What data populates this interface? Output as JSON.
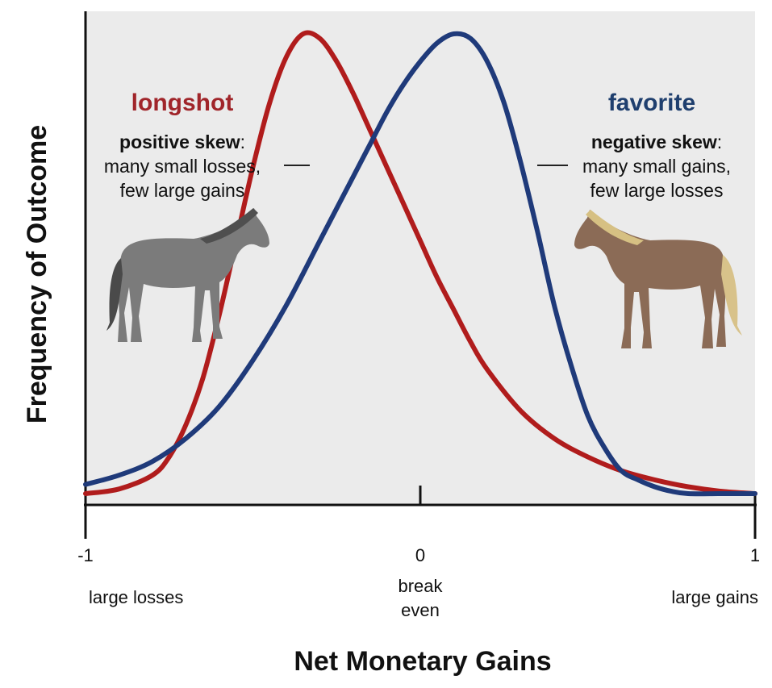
{
  "chart_data": {
    "type": "line",
    "title": "",
    "xlabel": "Net Monetary Gains",
    "ylabel": "Frequency of Outcome",
    "xlim": [
      -1,
      1
    ],
    "ylim": [
      0,
      1
    ],
    "grid": false,
    "x_ticks": [
      {
        "value": -1,
        "label": "-1",
        "sublabel": "large losses"
      },
      {
        "value": 0,
        "label": "0",
        "sublabel": "break even"
      },
      {
        "value": 1,
        "label": "1",
        "sublabel": "large gains"
      }
    ],
    "series": [
      {
        "name": "longshot",
        "color": "#b01c1c",
        "x": [
          -1.0,
          -0.9,
          -0.8,
          -0.75,
          -0.7,
          -0.65,
          -0.6,
          -0.55,
          -0.5,
          -0.45,
          -0.4,
          -0.35,
          -0.3,
          -0.25,
          -0.2,
          -0.15,
          -0.1,
          -0.05,
          0.0,
          0.05,
          0.1,
          0.15,
          0.2,
          0.3,
          0.4,
          0.5,
          0.6,
          0.7,
          0.8,
          0.9,
          1.0
        ],
        "y": [
          0.0,
          0.01,
          0.04,
          0.08,
          0.15,
          0.25,
          0.39,
          0.55,
          0.71,
          0.85,
          0.95,
          1.0,
          0.99,
          0.94,
          0.87,
          0.79,
          0.71,
          0.63,
          0.55,
          0.47,
          0.4,
          0.33,
          0.27,
          0.18,
          0.12,
          0.08,
          0.05,
          0.03,
          0.015,
          0.005,
          0.0
        ]
      },
      {
        "name": "favorite",
        "color": "#1f3a7a",
        "x": [
          -1.0,
          -0.9,
          -0.8,
          -0.7,
          -0.6,
          -0.5,
          -0.4,
          -0.3,
          -0.2,
          -0.15,
          -0.1,
          -0.05,
          0.0,
          0.05,
          0.1,
          0.15,
          0.2,
          0.25,
          0.3,
          0.35,
          0.4,
          0.45,
          0.5,
          0.55,
          0.6,
          0.65,
          0.7,
          0.75,
          0.8,
          0.9,
          1.0
        ],
        "y": [
          0.02,
          0.04,
          0.07,
          0.12,
          0.19,
          0.29,
          0.41,
          0.55,
          0.69,
          0.76,
          0.83,
          0.89,
          0.94,
          0.98,
          1.0,
          0.99,
          0.94,
          0.85,
          0.72,
          0.57,
          0.41,
          0.28,
          0.17,
          0.1,
          0.05,
          0.03,
          0.015,
          0.005,
          0.0,
          0.0,
          0.0
        ]
      }
    ],
    "annotations": {
      "longshot": {
        "title": "longshot",
        "skew": "positive skew",
        "colon": ":",
        "line1": "many small losses,",
        "line2": "few large gains"
      },
      "favorite": {
        "title": "favorite",
        "skew": "negative skew",
        "colon": ":",
        "line1": "many small gains,",
        "line2": "few large losses"
      }
    },
    "images": [
      {
        "name": "gray-horse",
        "color": "#7a7a7a",
        "facing": "right"
      },
      {
        "name": "brown-horse",
        "color": "#8a6a55",
        "facing": "left"
      }
    ]
  }
}
